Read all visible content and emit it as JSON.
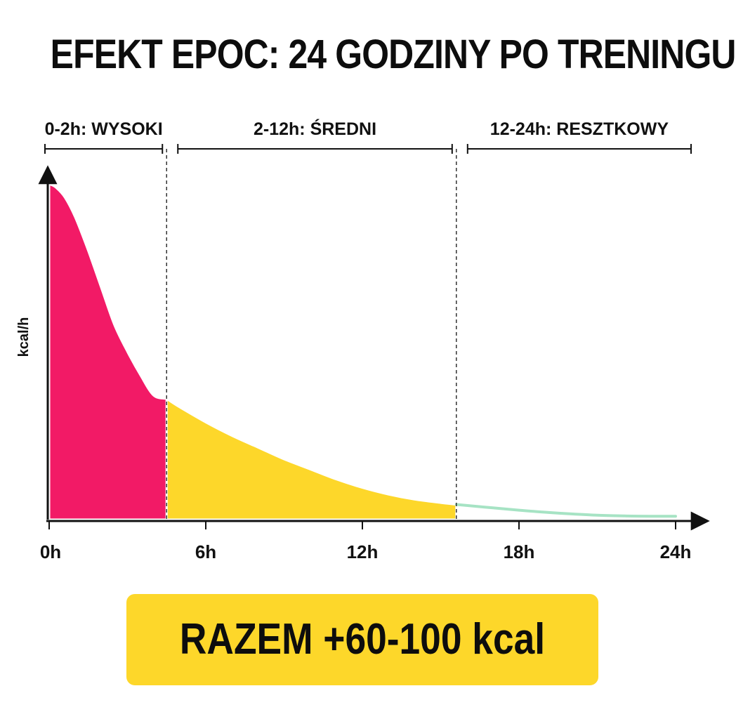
{
  "chart_data": {
    "type": "area",
    "title": "EFEKT EPOC: 24 GODZINY PO TRENINGU",
    "ylabel": "kcal/h",
    "xlabel": "",
    "x_ticks": [
      "0h",
      "6h",
      "12h",
      "18h",
      "24h"
    ],
    "xlim": [
      0,
      24
    ],
    "ylim": [
      0,
      1
    ],
    "grid": false,
    "phases": [
      {
        "name": "0-2h: WYSOKI",
        "start": 0,
        "end": 4.5,
        "color": "#f21a66"
      },
      {
        "name": "2-12h: ŚREDNI",
        "start": 4.5,
        "end": 15.6,
        "color": "#fdd72a"
      },
      {
        "name": "12-24h: RESZTKOWY",
        "start": 15.6,
        "end": 24,
        "color": "#a6e3c4"
      }
    ],
    "curve": {
      "x": [
        0,
        0.25,
        0.6,
        1,
        1.5,
        2,
        2.5,
        3,
        3.5,
        4,
        4.5,
        5,
        6,
        7,
        8,
        9,
        10,
        11,
        12,
        13,
        14,
        15,
        15.6,
        16,
        17,
        18,
        19,
        20,
        21,
        22,
        23,
        24
      ],
      "y": [
        1.0,
        0.99,
        0.96,
        0.9,
        0.8,
        0.69,
        0.58,
        0.5,
        0.43,
        0.37,
        0.36,
        0.335,
        0.29,
        0.25,
        0.215,
        0.18,
        0.15,
        0.12,
        0.095,
        0.075,
        0.06,
        0.05,
        0.045,
        0.042,
        0.035,
        0.028,
        0.022,
        0.017,
        0.013,
        0.011,
        0.01,
        0.01
      ]
    },
    "total": "RAZEM +60-100 kcal"
  }
}
